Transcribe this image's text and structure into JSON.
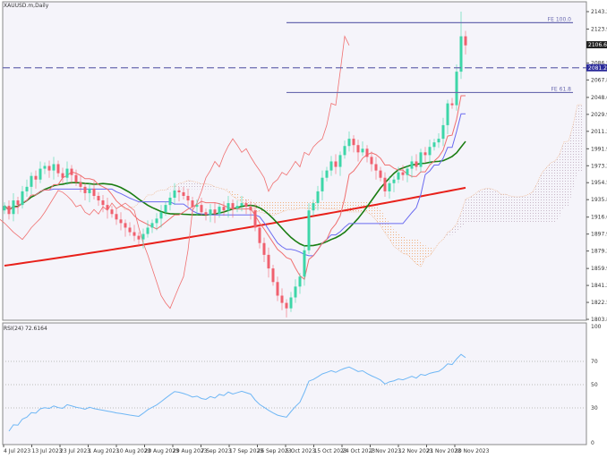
{
  "window": {
    "title": "XAUUSD.m,Daily"
  },
  "indicator": {
    "label": "RSI(24) 72.6164"
  },
  "colors": {
    "background": "#f5f4fa",
    "bull_candle": "#3dd6a8",
    "bear_candle": "#f0606e",
    "ma_long": "#e8201a",
    "ma_mid": "#1a7d12",
    "tenkan": "#f07070",
    "kijun": "#6a6af0",
    "rsi": "#6fb7f5",
    "fib_line": "#6a6ab0",
    "cloud_bull": "#c8b8c8",
    "cloud_bear": "#f0b080"
  },
  "price_axis": {
    "max": 2143.2,
    "min": 1803.85,
    "ticks": [
      "2143.20",
      "2123.95",
      "2086.55",
      "2067.85",
      "2048.60",
      "2029.90",
      "2011.20",
      "1991.95",
      "1973.25",
      "1954.55",
      "1935.85",
      "1916.60",
      "1897.90",
      "1879.20",
      "1859.95",
      "1841.25",
      "1822.55",
      "1803.85"
    ],
    "current_price": "2106.69",
    "line_price": "2081.29"
  },
  "fib_levels": [
    {
      "label": "FE 100.0",
      "price": 2131
    },
    {
      "label": "FE 61.8",
      "price": 2054
    }
  ],
  "rsi_axis": {
    "ticks": [
      "100",
      "70",
      "50",
      "30",
      "0"
    ]
  },
  "date_axis": [
    "4 Jul 2023",
    "13 Jul 2023",
    "23 Jul 2023",
    "1 Aug 2023",
    "10 Aug 2023",
    "20 Aug 2023",
    "29 Aug 2023",
    "7 Sep 2023",
    "17 Sep 2023",
    "26 Sep 2023",
    "5 Oct 2023",
    "15 Oct 2023",
    "24 Oct 2023",
    "2 Nov 2023",
    "12 Nov 2023",
    "21 Nov 2023",
    "30 Nov 2023"
  ],
  "chart_data": {
    "type": "candlestick",
    "symbol": "XAUUSD.m",
    "timeframe": "Daily",
    "closes": [
      1929,
      1920,
      1935,
      1930,
      1945,
      1950,
      1962,
      1958,
      1970,
      1973,
      1968,
      1975,
      1965,
      1960,
      1970,
      1963,
      1955,
      1950,
      1943,
      1948,
      1940,
      1935,
      1930,
      1925,
      1920,
      1914,
      1910,
      1905,
      1900,
      1896,
      1892,
      1898,
      1905,
      1910,
      1915,
      1922,
      1930,
      1938,
      1946,
      1944,
      1940,
      1935,
      1928,
      1930,
      1922,
      1919,
      1925,
      1920,
      1928,
      1924,
      1932,
      1926,
      1929,
      1932,
      1928,
      1924,
      1905,
      1888,
      1875,
      1860,
      1845,
      1830,
      1822,
      1816,
      1828,
      1840,
      1851,
      1880,
      1924,
      1932,
      1945,
      1960,
      1968,
      1978,
      1972,
      1985,
      1995,
      2003,
      1996,
      1988,
      1992,
      1983,
      1975,
      1968,
      1960,
      1945,
      1954,
      1958,
      1966,
      1963,
      1970,
      1978,
      1972,
      1988,
      1985,
      1994,
      1999,
      2003,
      2018,
      2042,
      2040,
      2077,
      2116,
      2106
    ],
    "last_high": 2143.2,
    "ma_long": {
      "start": 1863,
      "end": 1949
    },
    "rsi_period": 24,
    "rsi_last": 72.6164,
    "rsi_levels": [
      70,
      50,
      30
    ]
  }
}
